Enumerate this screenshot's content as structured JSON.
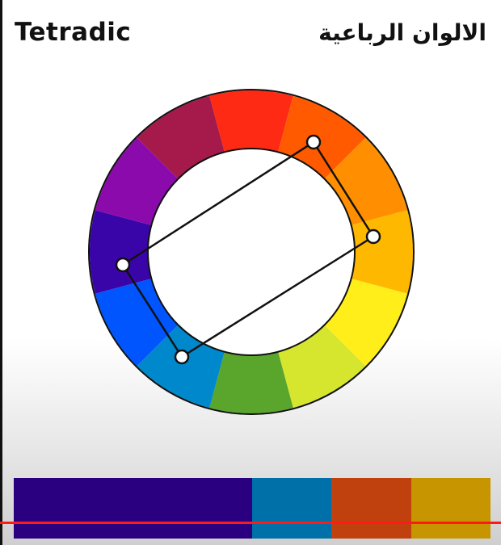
{
  "header": {
    "title_en": "Tetradic",
    "title_ar": "الالوان الرباعية"
  },
  "wheel": {
    "segments": [
      "#ff2a14",
      "#ff5a00",
      "#ff8f00",
      "#ffb800",
      "#ffee1a",
      "#d6e62e",
      "#5aa52c",
      "#0088cc",
      "#0055ff",
      "#3a05a8",
      "#8a0aac",
      "#a51a4a"
    ],
    "tetrad_points": [
      "#ff5a00",
      "#ffb800",
      "#0088cc",
      "#3a05a8"
    ]
  },
  "palette": [
    {
      "name": "indigo",
      "color": "#2a0080",
      "weight": 3
    },
    {
      "name": "blue",
      "color": "#0070a8",
      "weight": 1
    },
    {
      "name": "red-orange",
      "color": "#c0410e",
      "weight": 1
    },
    {
      "name": "gold",
      "color": "#c79500",
      "weight": 1
    }
  ],
  "accent_line_color": "#ff1a1a"
}
